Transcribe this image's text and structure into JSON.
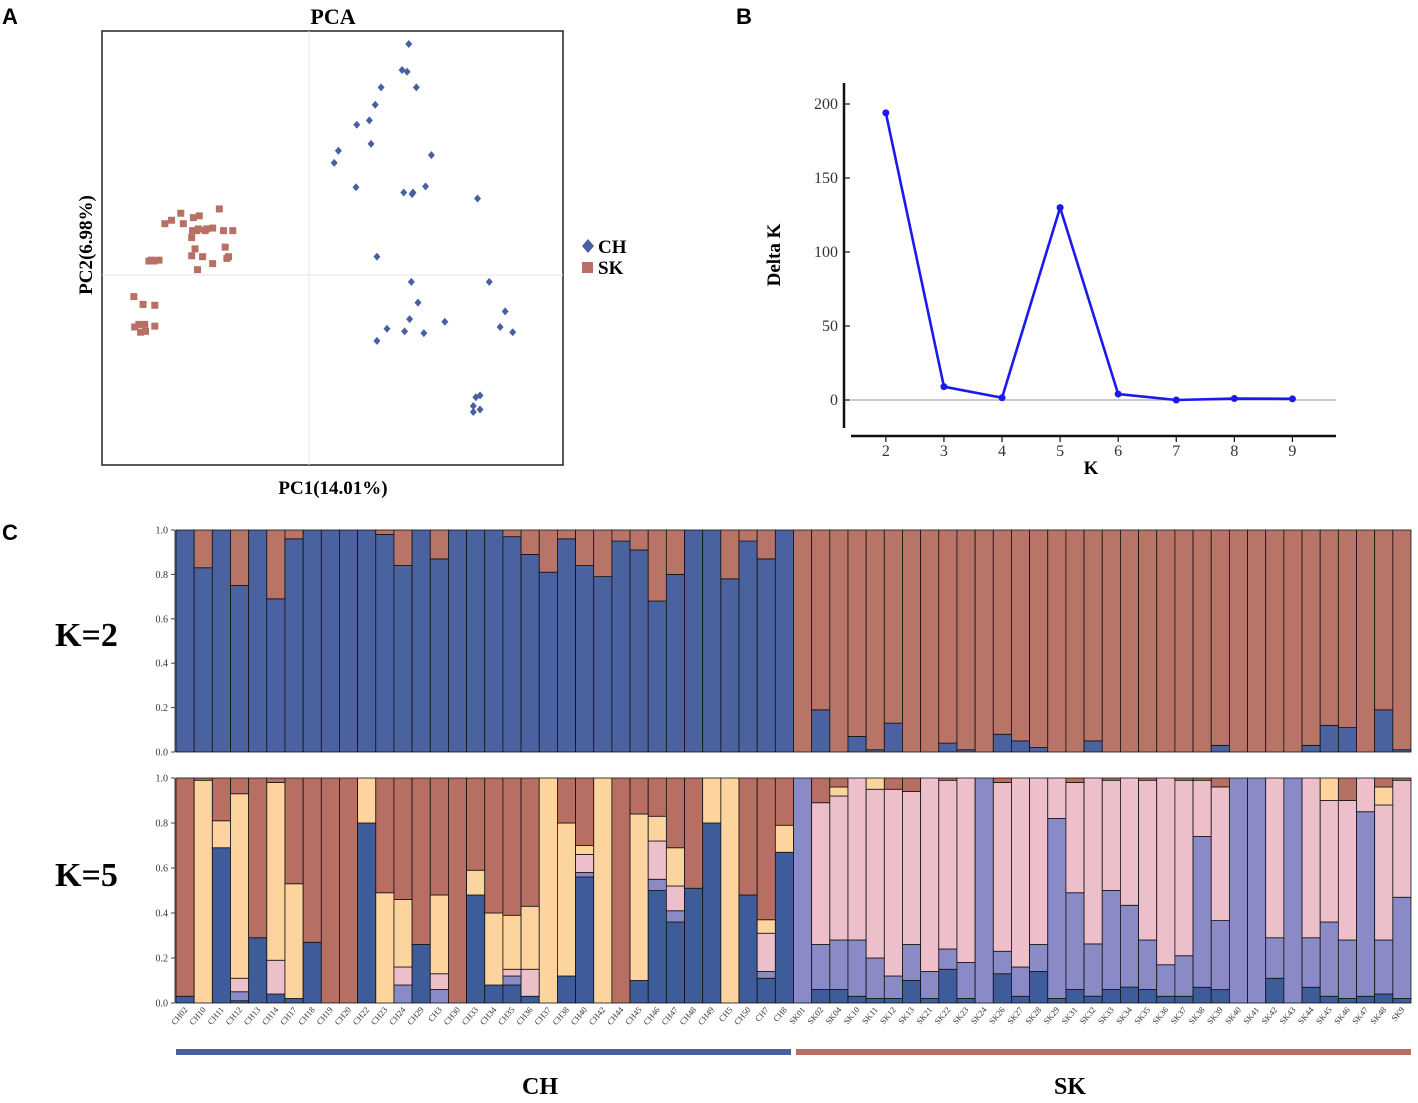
{
  "panels": {
    "a": "A",
    "b": "B",
    "c": "C"
  },
  "pca": {
    "title": "PCA",
    "xlabel": "PC1(14.01%)",
    "ylabel": "PC2(6.98%)",
    "legend": [
      {
        "label": "CH",
        "color": "#4A5FA0",
        "marker": "diamond"
      },
      {
        "label": "SK",
        "color": "#B87065",
        "marker": "square"
      }
    ]
  },
  "deltak": {
    "ylabel": "Delta K",
    "xlabel": "K",
    "line_color": "#1a1aee"
  },
  "structure": {
    "colors_k2": [
      "#4A62A0",
      "#B97468"
    ],
    "colors_k5": [
      "#3E5C99",
      "#8A8AC6",
      "#ECBFCB",
      "#FDD49E",
      "#B86F63"
    ],
    "group_labels": [
      {
        "label": "CH",
        "color": "#4A5FA0"
      },
      {
        "label": "SK",
        "color": "#B87065"
      }
    ]
  },
  "chart_data": [
    {
      "type": "scatter",
      "title": "PCA",
      "xlabel": "PC1(14.01%)",
      "ylabel": "PC2(6.98%)",
      "xlim": [
        -0.25,
        0.3
      ],
      "ylim": [
        -0.25,
        0.25
      ],
      "grid": false,
      "legend_position": "right",
      "series": [
        {
          "name": "CH",
          "points": [
            [
              0.116,
              0.235
            ],
            [
              0.108,
              0.205
            ],
            [
              0.114,
              0.203
            ],
            [
              0.125,
              0.185
            ],
            [
              0.083,
              0.185
            ],
            [
              0.076,
              0.165
            ],
            [
              0.069,
              0.147
            ],
            [
              0.054,
              0.142
            ],
            [
              0.071,
              0.12
            ],
            [
              0.032,
              0.112
            ],
            [
              0.027,
              0.098
            ],
            [
              0.143,
              0.107
            ],
            [
              0.136,
              0.071
            ],
            [
              0.121,
              0.064
            ],
            [
              0.12,
              0.062
            ],
            [
              0.11,
              0.064
            ],
            [
              0.053,
              0.07
            ],
            [
              0.198,
              0.057
            ],
            [
              0.078,
              -0.01
            ],
            [
              0.119,
              -0.039
            ],
            [
              0.212,
              -0.039
            ],
            [
              0.127,
              -0.063
            ],
            [
              0.231,
              -0.073
            ],
            [
              0.117,
              -0.082
            ],
            [
              0.159,
              -0.085
            ],
            [
              0.225,
              -0.091
            ],
            [
              0.09,
              -0.093
            ],
            [
              0.111,
              -0.096
            ],
            [
              0.134,
              -0.098
            ],
            [
              0.24,
              -0.097
            ],
            [
              0.078,
              -0.107
            ],
            [
              0.201,
              -0.17
            ],
            [
              0.196,
              -0.172
            ],
            [
              0.193,
              -0.182
            ],
            [
              0.201,
              -0.186
            ],
            [
              0.193,
              -0.189
            ]
          ]
        },
        {
          "name": "SK",
          "points": [
            [
              -0.156,
              0.04
            ],
            [
              -0.11,
              0.045
            ],
            [
              -0.134,
              0.037
            ],
            [
              -0.141,
              0.035
            ],
            [
              -0.135,
              0.022
            ],
            [
              -0.118,
              0.023
            ],
            [
              -0.125,
              0.022
            ],
            [
              -0.127,
              0.02
            ],
            [
              -0.137,
              0.02
            ],
            [
              -0.142,
              0.02
            ],
            [
              -0.105,
              0.02
            ],
            [
              -0.094,
              0.02
            ],
            [
              -0.143,
              0.012
            ],
            [
              -0.167,
              0.032
            ],
            [
              -0.175,
              0.028
            ],
            [
              -0.153,
              0.028
            ],
            [
              -0.103,
              0.001
            ],
            [
              -0.099,
              -0.01
            ],
            [
              -0.101,
              -0.012
            ],
            [
              -0.139,
              -0.001
            ],
            [
              -0.182,
              -0.014
            ],
            [
              -0.188,
              -0.015
            ],
            [
              -0.194,
              -0.015
            ],
            [
              -0.191,
              -0.014
            ],
            [
              -0.143,
              -0.009
            ],
            [
              -0.13,
              -0.01
            ],
            [
              -0.118,
              -0.018
            ],
            [
              -0.136,
              -0.025
            ],
            [
              -0.212,
              -0.056
            ],
            [
              -0.187,
              -0.066
            ],
            [
              -0.201,
              -0.065
            ],
            [
              -0.199,
              -0.088
            ],
            [
              -0.206,
              -0.088
            ],
            [
              -0.187,
              -0.09
            ],
            [
              -0.211,
              -0.091
            ],
            [
              -0.198,
              -0.096
            ],
            [
              -0.204,
              -0.097
            ]
          ]
        }
      ]
    },
    {
      "type": "line",
      "xlabel": "K",
      "ylabel": "Delta K",
      "x": [
        2,
        3,
        4,
        5,
        6,
        7,
        8,
        9
      ],
      "xlim": [
        1.4,
        9.75
      ],
      "ylim": [
        -20,
        210
      ],
      "yticks": [
        0,
        50,
        100,
        150,
        200
      ],
      "series": [
        {
          "values": [
            194,
            9,
            1.5,
            130,
            4,
            0,
            1,
            0.8
          ]
        }
      ]
    },
    {
      "type": "bar",
      "subtype": "stacked-admixture",
      "ylim": [
        0,
        1
      ],
      "yticks": [
        "0.0",
        "0.2",
        "0.4",
        "0.6",
        "0.8",
        "1.0"
      ],
      "categories": [
        "CH02",
        "CH10",
        "CH11",
        "CH12",
        "CH13",
        "CH14",
        "CH17",
        "CH18",
        "CH19",
        "CH20",
        "CH22",
        "CH23",
        "CH24",
        "CH29",
        "CH3",
        "CH30",
        "CH33",
        "CH34",
        "CH35",
        "CH36",
        "CH37",
        "CH38",
        "CH40",
        "CH42",
        "CH44",
        "CH45",
        "CH46",
        "CH47",
        "CH48",
        "CH49",
        "CH5",
        "CH50",
        "CH7",
        "CH8",
        "SK01",
        "SK02",
        "SK04",
        "SK10",
        "SK11",
        "SK12",
        "SK13",
        "SK21",
        "SK22",
        "SK23",
        "SK24",
        "SK26",
        "SK27",
        "SK28",
        "SK29",
        "SK31",
        "SK32",
        "SK33",
        "SK34",
        "SK35",
        "SK36",
        "SK37",
        "SK38",
        "SK39",
        "SK40",
        "SK41",
        "SK42",
        "SK43",
        "SK44",
        "SK45",
        "SK46",
        "SK47",
        "SK48",
        "SK9"
      ],
      "panels": [
        {
          "label": "K=2",
          "series": [
            {
              "values": [
                1.0,
                0.83,
                1.0,
                0.75,
                1.0,
                0.69,
                0.96,
                1.0,
                1.0,
                1.0,
                1.0,
                0.98,
                0.84,
                1.0,
                0.87,
                1.0,
                1.0,
                1.0,
                0.97,
                0.89,
                0.81,
                0.96,
                0.84,
                0.79,
                0.95,
                0.91,
                0.68,
                0.8,
                1.0,
                1.0,
                0.78,
                0.95,
                0.87,
                1.0,
                0.0,
                0.19,
                0.0,
                0.07,
                0.01,
                0.13,
                0.0,
                0.0,
                0.04,
                0.01,
                0.0,
                0.08,
                0.05,
                0.02,
                0.0,
                0.0,
                0.05,
                0.0,
                0.0,
                0.0,
                0.0,
                0.0,
                0.0,
                0.03,
                0.0,
                0.0,
                0.0,
                0.0,
                0.03,
                0.12,
                0.11,
                0.0,
                0.19,
                0.01
              ]
            },
            {
              "values": [
                0.0,
                0.17,
                0.0,
                0.25,
                0.0,
                0.31,
                0.04,
                0.0,
                0.0,
                0.0,
                0.0,
                0.02,
                0.16,
                0.0,
                0.13,
                0.0,
                0.0,
                0.0,
                0.03,
                0.11,
                0.19,
                0.04,
                0.16,
                0.21,
                0.05,
                0.09,
                0.32,
                0.2,
                0.0,
                0.0,
                0.22,
                0.05,
                0.13,
                0.0,
                1.0,
                0.81,
                1.0,
                0.93,
                0.99,
                0.87,
                1.0,
                1.0,
                0.96,
                0.99,
                1.0,
                0.92,
                0.95,
                0.98,
                1.0,
                1.0,
                0.95,
                1.0,
                1.0,
                1.0,
                1.0,
                1.0,
                1.0,
                0.97,
                1.0,
                1.0,
                1.0,
                1.0,
                0.97,
                0.88,
                0.89,
                1.0,
                0.81,
                0.99
              ]
            }
          ]
        },
        {
          "label": "K=5",
          "series": [
            {
              "values": [
                0.03,
                0.0,
                0.69,
                0.01,
                0.29,
                0.04,
                0.02,
                0.27,
                0.0,
                0.0,
                0.8,
                0.0,
                0.0,
                0.26,
                0.0,
                0.0,
                0.48,
                0.08,
                0.08,
                0.03,
                0.0,
                0.12,
                0.56,
                0.0,
                0.0,
                0.1,
                0.5,
                0.36,
                0.51,
                0.8,
                0.0,
                0.48,
                0.11,
                0.67,
                0.0,
                0.06,
                0.06,
                0.03,
                0.02,
                0.02,
                0.1,
                0.02,
                0.15,
                0.02,
                0.0,
                0.13,
                0.03,
                0.14,
                0.02,
                0.06,
                0.03,
                0.06,
                0.07,
                0.06,
                0.03,
                0.03,
                0.07,
                0.06,
                0.0,
                0.0,
                0.11,
                0.0,
                0.07,
                0.03,
                0.02,
                0.03,
                0.04,
                0.02
              ]
            },
            {
              "values": [
                0,
                0,
                0,
                0.04,
                0,
                0,
                0,
                0,
                0,
                0,
                0,
                0,
                0.08,
                0,
                0.06,
                0,
                0,
                0,
                0.04,
                0,
                0,
                0,
                0.02,
                0,
                0,
                0,
                0.05,
                0.05,
                0,
                0,
                0,
                0,
                0.03,
                0,
                1.0,
                0.2,
                0.22,
                0.25,
                0.18,
                0.1,
                0.16,
                0.12,
                0.09,
                0.16,
                1.0,
                0.1,
                0.13,
                0.12,
                0.8,
                0.43,
                0.23,
                0.44,
                0.36,
                0.22,
                0.14,
                0.18,
                0.67,
                0.31,
                1.0,
                1.0,
                0.18,
                1.0,
                0.22,
                0.33,
                0.26,
                0.82,
                0.24,
                0.45
              ]
            },
            {
              "values": [
                0,
                0,
                0,
                0.06,
                0,
                0.15,
                0,
                0,
                0,
                0,
                0,
                0,
                0.08,
                0,
                0.07,
                0,
                0,
                0,
                0.03,
                0.12,
                0,
                0,
                0.08,
                0,
                0,
                0,
                0.17,
                0.11,
                0,
                0,
                0,
                0,
                0.17,
                0,
                0,
                0.63,
                0.64,
                0.72,
                0.75,
                0.83,
                0.68,
                0.86,
                0.75,
                0.82,
                0,
                0.75,
                0.84,
                0.74,
                0.18,
                0.49,
                0.73,
                0.49,
                0.56,
                0.71,
                0.83,
                0.78,
                0.25,
                0.6,
                0,
                0,
                0.71,
                0,
                0.71,
                0.54,
                0.62,
                0.15,
                0.6,
                0.52
              ]
            },
            {
              "values": [
                0,
                0.99,
                0.12,
                0.82,
                0,
                0.79,
                0.51,
                0,
                0,
                0,
                0.2,
                0.49,
                0.3,
                0,
                0.35,
                0,
                0.11,
                0.32,
                0.24,
                0.28,
                1.0,
                0.68,
                0.04,
                1.0,
                0,
                0.74,
                0.11,
                0.17,
                0,
                0.2,
                1.0,
                0,
                0.06,
                0.12,
                0,
                0,
                0.04,
                0,
                0.05,
                0,
                0,
                0,
                0,
                0,
                0,
                0,
                0,
                0,
                0,
                0,
                0,
                0,
                0,
                0,
                0,
                0,
                0,
                0,
                0,
                0,
                0,
                0,
                0,
                0.1,
                0,
                0,
                0.08,
                0
              ]
            },
            {
              "values": [
                0.97,
                0.01,
                0.19,
                0.07,
                0.71,
                0.02,
                0.47,
                0.73,
                1.0,
                1.0,
                0,
                0.51,
                0.54,
                0.74,
                0.52,
                1.0,
                0.41,
                0.6,
                0.61,
                0.57,
                0,
                0.2,
                0.3,
                0,
                1.0,
                0.16,
                0.17,
                0.31,
                0.49,
                0,
                0,
                0.52,
                0.63,
                0.21,
                0,
                0.11,
                0.04,
                0,
                0,
                0.05,
                0.06,
                0,
                0.01,
                0,
                0,
                0.02,
                0,
                0,
                0,
                0.02,
                0,
                0.01,
                0,
                0.01,
                0,
                0.01,
                0.01,
                0.04,
                0,
                0,
                0,
                0,
                0.0,
                0,
                0.1,
                0,
                0.04,
                0.01
              ]
            }
          ]
        }
      ],
      "groups": [
        {
          "label": "CH",
          "from": 0,
          "to": 33
        },
        {
          "label": "SK",
          "from": 34,
          "to": 67
        }
      ]
    }
  ]
}
